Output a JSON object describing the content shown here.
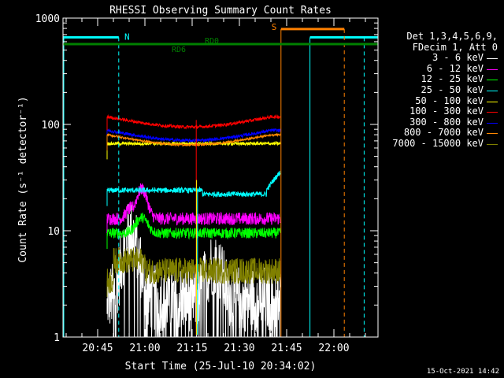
{
  "chart_data": {
    "type": "line",
    "title": "RHESSI Observing Summary Count Rates",
    "xlabel": "Start Time (25-Jul-10 20:34:02)",
    "ylabel": "Count Rate (s⁻¹ detector⁻¹)",
    "y_scale": "log",
    "ylim": [
      1,
      1000
    ],
    "xlim_minutes_after_start": [
      0,
      100
    ],
    "x_ticks": [
      {
        "label": "20:45",
        "t": 11
      },
      {
        "label": "21:00",
        "t": 26
      },
      {
        "label": "21:15",
        "t": 41
      },
      {
        "label": "21:30",
        "t": 56
      },
      {
        "label": "21:45",
        "t": 71
      },
      {
        "label": "22:00",
        "t": 86
      }
    ],
    "y_ticks": [
      {
        "label": "1",
        "v": 1
      },
      {
        "label": "10",
        "v": 10
      },
      {
        "label": "100",
        "v": 100
      },
      {
        "label": "1000",
        "v": 1000
      }
    ],
    "legend_header": [
      "Det 1,3,4,5,6,9,",
      "FDecim 1, Att 0"
    ],
    "series": [
      {
        "name": "3 - 6 keV",
        "color": "#ffffff",
        "t_range": [
          14,
          69
        ],
        "level": 2.3,
        "noise": 0.9,
        "kind": "low"
      },
      {
        "name": "6 - 12 keV",
        "color": "#ff00ff",
        "t_range": [
          14,
          69
        ],
        "level": 13,
        "noise": 0.12,
        "kind": "bump6"
      },
      {
        "name": "12 - 25 keV",
        "color": "#00ff00",
        "t_range": [
          14,
          69
        ],
        "level": 9.5,
        "noise": 0.1,
        "kind": "bump12"
      },
      {
        "name": "25 - 50 keV",
        "color": "#00ffff",
        "t_range": [
          14,
          69
        ],
        "level": 24,
        "noise": 0.05,
        "kind": "rise25"
      },
      {
        "name": "50 - 100 keV",
        "color": "#ffff00",
        "t_range": [
          14,
          69
        ],
        "level": 66,
        "noise": 0.03,
        "kind": "flat"
      },
      {
        "name": "100 - 300 keV",
        "color": "#ff0000",
        "t_range": [
          14,
          69
        ],
        "level": 118,
        "noise": 0.03,
        "kind": "dip"
      },
      {
        "name": "300 - 800 keV",
        "color": "#0000ff",
        "t_range": [
          14,
          69
        ],
        "level": 88,
        "noise": 0.03,
        "kind": "dip"
      },
      {
        "name": "800 - 7000 keV",
        "color": "#ff8800",
        "t_range": [
          14,
          69
        ],
        "level": 80,
        "noise": 0.02,
        "kind": "dip"
      },
      {
        "name": "7000 - 15000 keV",
        "color": "#808000",
        "t_range": [
          14,
          69
        ],
        "level": 4.2,
        "noise": 0.25,
        "kind": "step"
      }
    ],
    "flags": {
      "N_label": "N",
      "S_label": "S",
      "RD0_label": "RD0",
      "RD6_label": "RD6",
      "cyan_color": "#00ffff",
      "orange_color": "#ff8000",
      "green_color": "#008000"
    },
    "footer_timestamp": "15-Oct-2021 14:42"
  }
}
